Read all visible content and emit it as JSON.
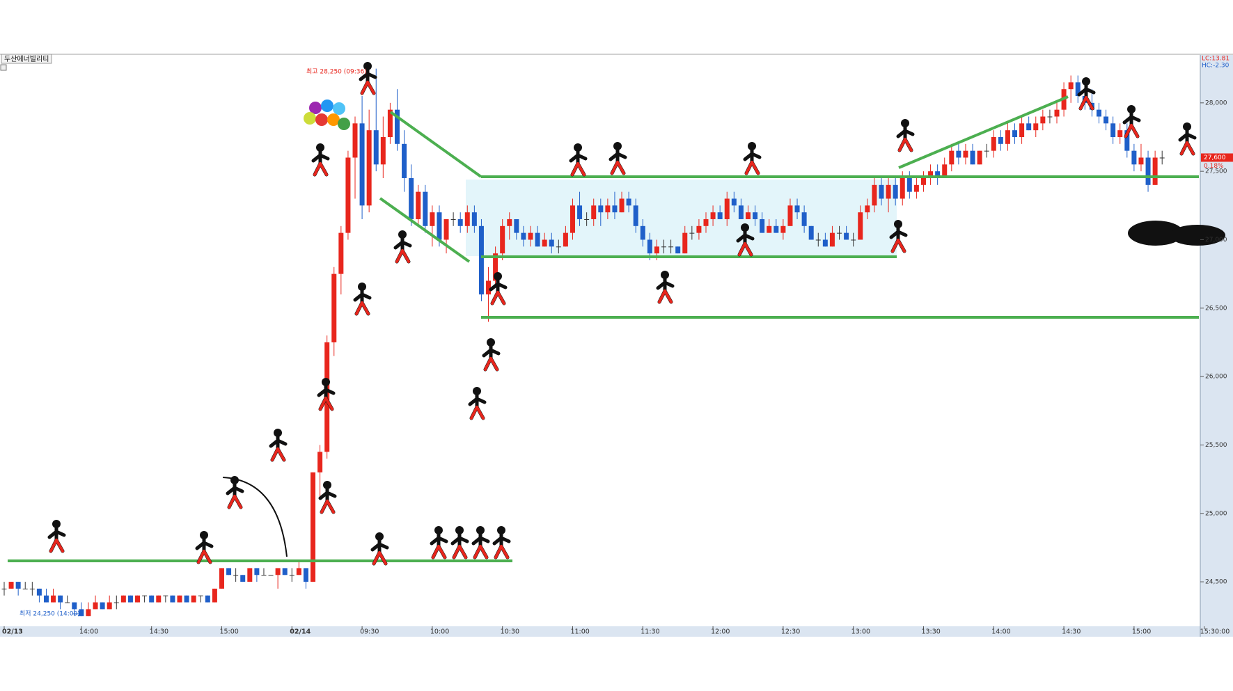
{
  "chart_data": {
    "type": "candlestick",
    "title": "두산에너빌리티",
    "high_note": "최고 28,250 (09:36)",
    "low_note": "최저 24,250 (14:00)",
    "lc_label": "LC:13.81",
    "hc_label": "HC:-2.30",
    "last_label": {
      "value": 27600,
      "label": "27,600"
    },
    "change_label": "0.18%",
    "up_color": "#e8261d",
    "down_color": "#1f5fc9",
    "ylim": [
      24175,
      28350
    ],
    "yticks": [
      {
        "value": 24500,
        "label": "24,500"
      },
      {
        "value": 25000,
        "label": "25,000"
      },
      {
        "value": 25500,
        "label": "25,500"
      },
      {
        "value": 26000,
        "label": "26,000"
      },
      {
        "value": 26500,
        "label": "26,500"
      },
      {
        "value": 27000,
        "label": "27,000"
      },
      {
        "value": 27500,
        "label": "27,500"
      },
      {
        "value": 28000,
        "label": "28,000"
      }
    ],
    "categories": [
      "02/13",
      null,
      null,
      null,
      null,
      null,
      null,
      null,
      null,
      null,
      null,
      "14:00",
      null,
      null,
      null,
      null,
      null,
      null,
      null,
      null,
      null,
      "14:30",
      null,
      null,
      null,
      null,
      null,
      null,
      null,
      null,
      null,
      "15:00",
      null,
      null,
      null,
      null,
      null,
      null,
      null,
      null,
      null,
      "02/14",
      null,
      null,
      null,
      null,
      null,
      null,
      null,
      null,
      null,
      "09:30",
      null,
      null,
      null,
      null,
      null,
      null,
      null,
      null,
      null,
      "10:00",
      null,
      null,
      null,
      null,
      null,
      null,
      null,
      null,
      null,
      "10:30",
      null,
      null,
      null,
      null,
      null,
      null,
      null,
      null,
      null,
      "11:00",
      null,
      null,
      null,
      null,
      null,
      null,
      null,
      null,
      null,
      "11:30",
      null,
      null,
      null,
      null,
      null,
      null,
      null,
      null,
      null,
      "12:00",
      null,
      null,
      null,
      null,
      null,
      null,
      null,
      null,
      null,
      "12:30",
      null,
      null,
      null,
      null,
      null,
      null,
      null,
      null,
      null,
      "13:00",
      null,
      null,
      null,
      null,
      null,
      null,
      null,
      null,
      null,
      "13:30",
      null,
      null,
      null,
      null,
      null,
      null,
      null,
      null,
      null,
      "14:00",
      null,
      null,
      null,
      null,
      null,
      null,
      null,
      null,
      null,
      "14:30",
      null,
      null,
      null,
      null,
      null,
      null,
      null,
      null,
      null,
      "15:00",
      null,
      null,
      null,
      null,
      null,
      null,
      null,
      null,
      null,
      "15:30:00"
    ],
    "candles": [
      [
        24450,
        24500,
        24400,
        24450
      ],
      [
        24450,
        24500,
        24450,
        24500
      ],
      [
        24500,
        24500,
        24400,
        24450
      ],
      [
        24450,
        24500,
        24450,
        24450
      ],
      [
        24450,
        24500,
        24400,
        24450
      ],
      [
        24450,
        24450,
        24350,
        24400
      ],
      [
        24400,
        24450,
        24350,
        24350
      ],
      [
        24350,
        24450,
        24350,
        24400
      ],
      [
        24400,
        24400,
        24300,
        24350
      ],
      [
        24350,
        24400,
        24350,
        24350
      ],
      [
        24350,
        24350,
        24250,
        24300
      ],
      [
        24300,
        24350,
        24250,
        24250
      ],
      [
        24250,
        24350,
        24250,
        24300
      ],
      [
        24300,
        24400,
        24300,
        24350
      ],
      [
        24350,
        24350,
        24300,
        24300
      ],
      [
        24300,
        24400,
        24300,
        24350
      ],
      [
        24350,
        24400,
        24300,
        24350
      ],
      [
        24350,
        24400,
        24350,
        24400
      ],
      [
        24400,
        24400,
        24350,
        24350
      ],
      [
        24350,
        24400,
        24350,
        24400
      ],
      [
        24400,
        24400,
        24350,
        24400
      ],
      [
        24400,
        24400,
        24350,
        24350
      ],
      [
        24350,
        24400,
        24350,
        24400
      ],
      [
        24400,
        24400,
        24350,
        24400
      ],
      [
        24400,
        24400,
        24350,
        24350
      ],
      [
        24350,
        24400,
        24350,
        24400
      ],
      [
        24400,
        24400,
        24350,
        24350
      ],
      [
        24350,
        24400,
        24350,
        24400
      ],
      [
        24400,
        24400,
        24350,
        24400
      ],
      [
        24400,
        24400,
        24350,
        24350
      ],
      [
        24350,
        24450,
        24350,
        24450
      ],
      [
        24450,
        24600,
        24450,
        24600
      ],
      [
        24600,
        24600,
        24550,
        24550
      ],
      [
        24550,
        24600,
        24500,
        24550
      ],
      [
        24550,
        24550,
        24500,
        24500
      ],
      [
        24500,
        24600,
        24500,
        24600
      ],
      [
        24600,
        24600,
        24500,
        24550
      ],
      [
        24550,
        24600,
        24550,
        24550
      ],
      [
        24550,
        24550,
        24550,
        24550
      ],
      [
        24550,
        24600,
        24450,
        24600
      ],
      [
        24600,
        24600,
        24550,
        24550
      ],
      [
        24550,
        24600,
        24500,
        24550
      ],
      [
        24550,
        24650,
        24550,
        24600
      ],
      [
        24600,
        24600,
        24450,
        24500
      ],
      [
        24500,
        25300,
        24500,
        25300
      ],
      [
        25300,
        25500,
        25100,
        25450
      ],
      [
        25450,
        26300,
        25400,
        26250
      ],
      [
        26250,
        26800,
        26150,
        26750
      ],
      [
        26750,
        27100,
        26600,
        27050
      ],
      [
        27050,
        27650,
        27000,
        27600
      ],
      [
        27600,
        27900,
        27300,
        27850
      ],
      [
        27850,
        28050,
        27150,
        27250
      ],
      [
        27250,
        27950,
        27200,
        27800
      ],
      [
        27800,
        28250,
        27500,
        27550
      ],
      [
        27550,
        27900,
        27450,
        27750
      ],
      [
        27750,
        28000,
        27700,
        27950
      ],
      [
        27950,
        28100,
        27650,
        27700
      ],
      [
        27700,
        27800,
        27350,
        27450
      ],
      [
        27450,
        27550,
        27100,
        27150
      ],
      [
        27150,
        27400,
        27100,
        27350
      ],
      [
        27350,
        27400,
        27050,
        27100
      ],
      [
        27100,
        27250,
        26950,
        27200
      ],
      [
        27200,
        27250,
        26950,
        27000
      ],
      [
        27000,
        27150,
        26900,
        27150
      ],
      [
        27150,
        27200,
        27100,
        27150
      ],
      [
        27150,
        27200,
        27050,
        27100
      ],
      [
        27100,
        27250,
        27050,
        27200
      ],
      [
        27200,
        27250,
        27050,
        27100
      ],
      [
        27100,
        27150,
        26550,
        26600
      ],
      [
        26600,
        26800,
        26400,
        26700
      ],
      [
        26700,
        26950,
        26650,
        26900
      ],
      [
        26900,
        27150,
        26850,
        27100
      ],
      [
        27100,
        27200,
        27000,
        27150
      ],
      [
        27150,
        27150,
        27000,
        27050
      ],
      [
        27050,
        27100,
        26950,
        27000
      ],
      [
        27000,
        27100,
        26950,
        27050
      ],
      [
        27050,
        27100,
        26950,
        26950
      ],
      [
        26950,
        27050,
        26950,
        27000
      ],
      [
        27000,
        27050,
        26900,
        26950
      ],
      [
        26950,
        27000,
        26900,
        26950
      ],
      [
        26950,
        27100,
        26950,
        27050
      ],
      [
        27050,
        27300,
        27000,
        27250
      ],
      [
        27250,
        27350,
        27100,
        27150
      ],
      [
        27150,
        27200,
        27100,
        27150
      ],
      [
        27150,
        27300,
        27100,
        27250
      ],
      [
        27250,
        27300,
        27100,
        27200
      ],
      [
        27200,
        27300,
        27150,
        27250
      ],
      [
        27250,
        27350,
        27150,
        27200
      ],
      [
        27200,
        27350,
        27200,
        27300
      ],
      [
        27300,
        27350,
        27200,
        27250
      ],
      [
        27250,
        27300,
        27050,
        27100
      ],
      [
        27100,
        27150,
        26950,
        27000
      ],
      [
        27000,
        27050,
        26850,
        26900
      ],
      [
        26900,
        27000,
        26850,
        26950
      ],
      [
        26950,
        27000,
        26900,
        26950
      ],
      [
        26950,
        27000,
        26900,
        26950
      ],
      [
        26950,
        26950,
        26900,
        26900
      ],
      [
        26900,
        27100,
        26900,
        27050
      ],
      [
        27050,
        27100,
        27000,
        27050
      ],
      [
        27050,
        27150,
        27000,
        27100
      ],
      [
        27100,
        27200,
        27050,
        27150
      ],
      [
        27150,
        27250,
        27100,
        27200
      ],
      [
        27200,
        27250,
        27150,
        27150
      ],
      [
        27150,
        27350,
        27100,
        27300
      ],
      [
        27300,
        27350,
        27200,
        27250
      ],
      [
        27250,
        27300,
        27150,
        27150
      ],
      [
        27150,
        27250,
        27150,
        27200
      ],
      [
        27200,
        27250,
        27100,
        27150
      ],
      [
        27150,
        27200,
        27050,
        27050
      ],
      [
        27050,
        27150,
        27050,
        27100
      ],
      [
        27100,
        27150,
        27050,
        27050
      ],
      [
        27050,
        27150,
        27000,
        27100
      ],
      [
        27100,
        27300,
        27100,
        27250
      ],
      [
        27250,
        27300,
        27150,
        27200
      ],
      [
        27200,
        27250,
        27050,
        27100
      ],
      [
        27100,
        27100,
        27000,
        27000
      ],
      [
        27000,
        27050,
        26950,
        27000
      ],
      [
        27000,
        27050,
        26950,
        26950
      ],
      [
        26950,
        27100,
        26950,
        27050
      ],
      [
        27050,
        27100,
        27000,
        27050
      ],
      [
        27050,
        27100,
        27000,
        27000
      ],
      [
        27000,
        27050,
        26950,
        27000
      ],
      [
        27000,
        27250,
        27000,
        27200
      ],
      [
        27200,
        27300,
        27150,
        27250
      ],
      [
        27250,
        27450,
        27200,
        27400
      ],
      [
        27400,
        27450,
        27250,
        27300
      ],
      [
        27300,
        27450,
        27200,
        27400
      ],
      [
        27400,
        27450,
        27250,
        27300
      ],
      [
        27300,
        27500,
        27250,
        27450
      ],
      [
        27450,
        27500,
        27300,
        27350
      ],
      [
        27350,
        27450,
        27300,
        27400
      ],
      [
        27400,
        27500,
        27350,
        27450
      ],
      [
        27450,
        27550,
        27400,
        27500
      ],
      [
        27500,
        27550,
        27400,
        27450
      ],
      [
        27450,
        27600,
        27450,
        27550
      ],
      [
        27550,
        27700,
        27500,
        27650
      ],
      [
        27650,
        27700,
        27550,
        27600
      ],
      [
        27600,
        27700,
        27550,
        27650
      ],
      [
        27650,
        27700,
        27550,
        27550
      ],
      [
        27550,
        27650,
        27550,
        27650
      ],
      [
        27650,
        27700,
        27600,
        27650
      ],
      [
        27650,
        27800,
        27600,
        27750
      ],
      [
        27750,
        27800,
        27650,
        27700
      ],
      [
        27700,
        27850,
        27650,
        27800
      ],
      [
        27800,
        27850,
        27700,
        27750
      ],
      [
        27750,
        27900,
        27700,
        27850
      ],
      [
        27850,
        27900,
        27800,
        27800
      ],
      [
        27800,
        27900,
        27750,
        27850
      ],
      [
        27850,
        27950,
        27800,
        27900
      ],
      [
        27900,
        27950,
        27850,
        27900
      ],
      [
        27900,
        28000,
        27850,
        27950
      ],
      [
        27950,
        28150,
        27900,
        28100
      ],
      [
        28100,
        28200,
        28000,
        28150
      ],
      [
        28150,
        28200,
        28000,
        28050
      ],
      [
        28050,
        28150,
        27950,
        28000
      ],
      [
        28000,
        28100,
        27900,
        27950
      ],
      [
        27950,
        28000,
        27850,
        27900
      ],
      [
        27900,
        27950,
        27800,
        27850
      ],
      [
        27850,
        27900,
        27700,
        27750
      ],
      [
        27750,
        27850,
        27700,
        27800
      ],
      [
        27800,
        27850,
        27600,
        27650
      ],
      [
        27650,
        27700,
        27500,
        27550
      ],
      [
        27550,
        27700,
        27500,
        27600
      ],
      [
        27600,
        27650,
        27350,
        27400
      ],
      [
        27400,
        27650,
        27400,
        27600
      ],
      [
        27600,
        27650,
        27550,
        27600
      ],
      null,
      null,
      null,
      null,
      null,
      null
    ]
  }
}
